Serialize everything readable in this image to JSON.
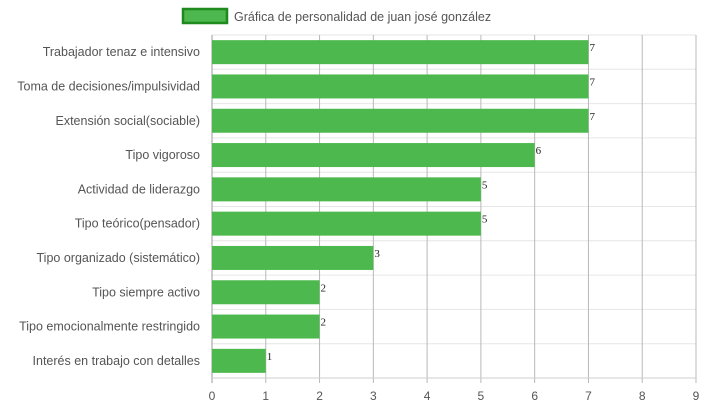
{
  "chart_data": {
    "type": "bar",
    "orientation": "horizontal",
    "title": "",
    "legend": {
      "placement": "top-center",
      "label": "Gráfica de personalidad de juan josé gonzález"
    },
    "series": [
      {
        "name": "Gráfica de personalidad de juan josé gonzález",
        "color": "#4db84d",
        "border_color": "#1e8a1e",
        "values": [
          7,
          7,
          7,
          6,
          5,
          5,
          3,
          2,
          2,
          1
        ]
      }
    ],
    "categories": [
      "Trabajador tenaz e intensivo",
      "Toma de decisiones/impulsividad",
      "Extensión social(sociable)",
      "Tipo vigoroso",
      "Actividad de liderazgo",
      "Tipo teórico(pensador)",
      "Tipo organizado (sistemático)",
      "Tipo siempre activo",
      "Tipo emocionalmente restringido",
      "Interés en trabajo con detalles"
    ],
    "xlim": [
      0,
      9
    ],
    "x_ticks": [
      "0",
      "1",
      "2",
      "3",
      "4",
      "5",
      "6",
      "7",
      "8",
      "9"
    ],
    "grid": true,
    "data_labels": true
  }
}
